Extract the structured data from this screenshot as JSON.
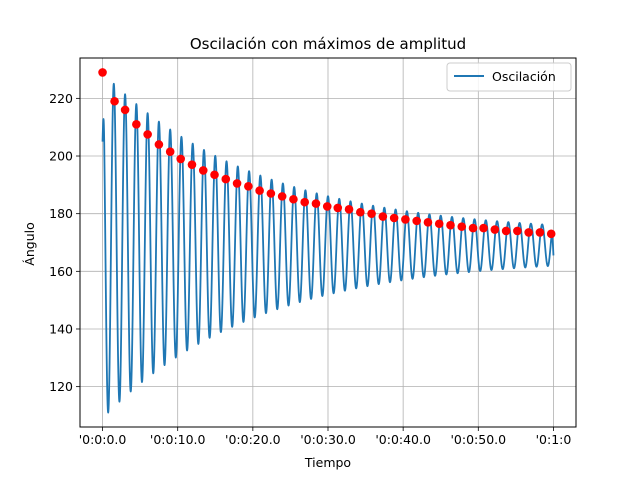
{
  "chart_data": {
    "type": "line",
    "title": "Oscilación con máximos de amplitud",
    "xlabel": "Tiempo",
    "ylabel": "Ángulo",
    "grid": true,
    "legend": {
      "placement": "top-right",
      "entries": [
        "Oscilación"
      ]
    },
    "xlim": [
      -3,
      63
    ],
    "ylim": [
      106,
      234
    ],
    "x_ticks": [
      {
        "value": 0,
        "label": "'0:0:0.0"
      },
      {
        "value": 10,
        "label": "'0:0:10.0"
      },
      {
        "value": 20,
        "label": "'0:0:20.0"
      },
      {
        "value": 30,
        "label": "'0:0:30.0"
      },
      {
        "value": 40,
        "label": "'0:0:40.0"
      },
      {
        "value": 50,
        "label": "'0:0:50.0"
      },
      {
        "value": 60,
        "label": "'0:1:0"
      }
    ],
    "y_ticks": [
      {
        "value": 120,
        "label": "120"
      },
      {
        "value": 140,
        "label": "140"
      },
      {
        "value": 160,
        "label": "160"
      },
      {
        "value": 180,
        "label": "180"
      },
      {
        "value": 200,
        "label": "200"
      },
      {
        "value": 220,
        "label": "220"
      }
    ],
    "series": [
      {
        "name": "Oscilación",
        "color": "#1f77b4",
        "model": {
          "equilibrium": 169,
          "amplitude_start": 60,
          "amplitude_decay": 0.0485,
          "amplitude_floor": 4,
          "period": 1.5,
          "start_angle": 205,
          "end_angle": 165.5,
          "t_start": 0,
          "t_end": 60
        }
      }
    ],
    "maxima": {
      "color": "#ff0000",
      "points": [
        [
          0.0,
          229
        ],
        [
          1.6,
          219
        ],
        [
          3.0,
          216
        ],
        [
          4.5,
          211
        ],
        [
          6.0,
          207.5
        ],
        [
          7.5,
          204
        ],
        [
          9.0,
          201.5
        ],
        [
          10.4,
          199
        ],
        [
          11.9,
          197
        ],
        [
          13.4,
          195
        ],
        [
          14.9,
          193.5
        ],
        [
          16.4,
          192
        ],
        [
          17.9,
          190.5
        ],
        [
          19.4,
          189.5
        ],
        [
          20.9,
          188
        ],
        [
          22.4,
          187
        ],
        [
          23.9,
          186
        ],
        [
          25.4,
          185
        ],
        [
          26.9,
          184
        ],
        [
          28.4,
          183.5
        ],
        [
          29.9,
          182.5
        ],
        [
          31.3,
          182
        ],
        [
          32.8,
          181.5
        ],
        [
          34.3,
          180.5
        ],
        [
          35.8,
          180
        ],
        [
          37.3,
          179
        ],
        [
          38.8,
          178.5
        ],
        [
          40.3,
          178
        ],
        [
          41.8,
          177.5
        ],
        [
          43.3,
          177
        ],
        [
          44.8,
          176.5
        ],
        [
          46.3,
          176
        ],
        [
          47.8,
          175.5
        ],
        [
          49.3,
          175
        ],
        [
          50.7,
          175
        ],
        [
          52.2,
          174.5
        ],
        [
          53.7,
          174
        ],
        [
          55.2,
          174
        ],
        [
          56.7,
          173.5
        ],
        [
          58.2,
          173.5
        ],
        [
          59.7,
          173
        ]
      ]
    }
  }
}
